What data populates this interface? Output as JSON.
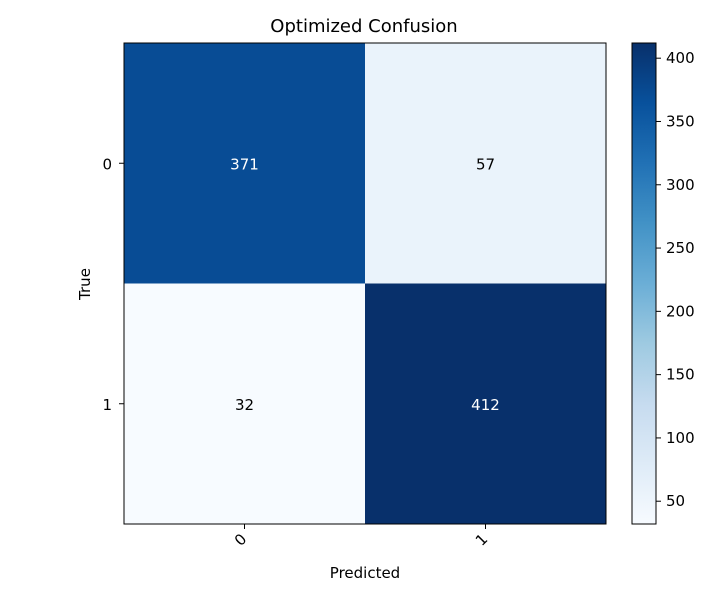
{
  "chart_data": {
    "type": "heatmap",
    "title": "Optimized Confusion",
    "xlabel": "Predicted",
    "ylabel": "True",
    "x_categories": [
      "0",
      "1"
    ],
    "y_categories": [
      "0",
      "1"
    ],
    "matrix": [
      [
        371,
        57
      ],
      [
        32,
        412
      ]
    ],
    "colormap": "Blues",
    "colorbar": {
      "range": [
        32,
        412
      ],
      "ticks": [
        50,
        100,
        150,
        200,
        250,
        300,
        350,
        400
      ]
    },
    "grid": false
  }
}
